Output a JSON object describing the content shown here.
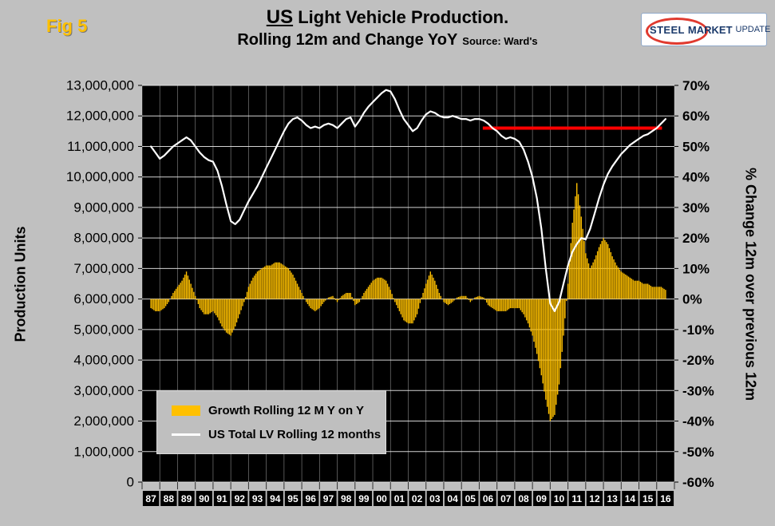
{
  "header": {
    "fig_label": "Fig 5",
    "title_emph": "US",
    "title_rest": " Light Vehicle Production.",
    "subtitle": "Rolling 12m and Change YoY",
    "source": "Source: Ward's",
    "logo": {
      "steel": "STEEL",
      "market": "MARKET",
      "update": "UPDATE"
    }
  },
  "legend": [
    {
      "label": "Growth Rolling 12 M Y on Y",
      "swatch_color": "#FFC000",
      "type": "bar"
    },
    {
      "label": "US Total LV Rolling 12 months",
      "swatch_color": "#FFFFFF",
      "type": "line"
    }
  ],
  "colors": {
    "background": "#C0C0C0",
    "plot_bg": "#000000",
    "bar": "#FFC000",
    "line": "#FFFFFF",
    "reference": "#FF0000",
    "grid_h": "#EAEAEA",
    "grid_v": "#DCDCDC",
    "fig_label": "#FFC000",
    "x_label_box": "#000000",
    "x_label_text": "#FFFFFF"
  },
  "chart_data": {
    "type": "combo",
    "title": "US Light Vehicle Production. Rolling 12m and Change YoY",
    "source": "Ward's",
    "x_start": 1987,
    "x_step_years": 0.25,
    "x_labels": [
      "87",
      "88",
      "89",
      "90",
      "91",
      "92",
      "93",
      "94",
      "95",
      "96",
      "97",
      "98",
      "99",
      "00",
      "01",
      "02",
      "03",
      "04",
      "05",
      "06",
      "07",
      "08",
      "09",
      "10",
      "11",
      "12",
      "13",
      "14",
      "15",
      "16"
    ],
    "left_axis": {
      "label": "Production Units",
      "min": 0,
      "max": 13000000,
      "tick_step": 1000000
    },
    "right_axis": {
      "label": "% Change 12m over previous 12m",
      "min": -60,
      "max": 70,
      "tick_step": 10
    },
    "series": [
      {
        "name": "US Total LV Rolling 12 months",
        "type": "line",
        "axis": "left",
        "color": "#FFFFFF",
        "values_millions": [
          11,
          10.8,
          10.6,
          10.7,
          10.85,
          11,
          11.1,
          11.2,
          11.3,
          11.2,
          11,
          10.8,
          10.65,
          10.55,
          10.5,
          10.2,
          9.7,
          9.1,
          8.55,
          8.45,
          8.6,
          8.9,
          9.2,
          9.45,
          9.7,
          10,
          10.3,
          10.6,
          10.9,
          11.2,
          11.5,
          11.75,
          11.9,
          11.95,
          11.85,
          11.7,
          11.6,
          11.65,
          11.6,
          11.7,
          11.75,
          11.7,
          11.6,
          11.75,
          11.9,
          11.95,
          11.65,
          11.85,
          12.1,
          12.3,
          12.45,
          12.6,
          12.75,
          12.85,
          12.8,
          12.55,
          12.2,
          11.9,
          11.7,
          11.5,
          11.6,
          11.85,
          12.05,
          12.15,
          12.1,
          12,
          11.95,
          11.95,
          12,
          11.95,
          11.9,
          11.9,
          11.85,
          11.9,
          11.9,
          11.85,
          11.75,
          11.6,
          11.5,
          11.35,
          11.25,
          11.3,
          11.25,
          11.15,
          10.9,
          10.5,
          10,
          9.3,
          8.3,
          7,
          5.85,
          5.6,
          5.9,
          6.5,
          7.1,
          7.55,
          7.8,
          8,
          7.95,
          8.3,
          8.8,
          9.3,
          9.75,
          10.1,
          10.35,
          10.55,
          10.75,
          10.9,
          11.05,
          11.15,
          11.25,
          11.35,
          11.4,
          11.5,
          11.6,
          11.75,
          11.9
        ]
      },
      {
        "name": "Growth Rolling 12 M Y on Y",
        "type": "bar",
        "axis": "right",
        "color": "#FFC000",
        "values_pct": [
          -3,
          -4,
          -4,
          -3,
          -1,
          2,
          4,
          6,
          9,
          5,
          1,
          -3,
          -5,
          -5,
          -4,
          -6,
          -9,
          -11,
          -12,
          -9,
          -5,
          -1,
          4,
          7,
          9,
          10,
          11,
          11,
          12,
          12,
          11,
          10,
          8,
          5,
          2,
          -1,
          -3,
          -4,
          -3,
          -1,
          0.5,
          1,
          -1,
          1,
          2,
          2,
          -2,
          -1,
          2,
          4,
          6,
          7,
          7,
          6,
          3,
          -1,
          -4,
          -7,
          -8,
          -8,
          -5,
          0.5,
          5,
          9,
          6,
          2,
          -1,
          -2,
          -1,
          0.5,
          1,
          1,
          -1,
          0.5,
          1,
          0.5,
          -2,
          -3,
          -4,
          -4,
          -4,
          -3,
          -3,
          -3,
          -5,
          -8,
          -12,
          -18,
          -25,
          -33,
          -40,
          -38,
          -28,
          -12,
          5,
          25,
          38,
          27,
          15,
          10,
          13,
          17,
          20,
          18,
          14,
          11,
          9,
          8,
          7,
          6,
          6,
          5,
          5,
          4,
          4,
          4,
          3
        ]
      }
    ],
    "annotations": [
      {
        "type": "hline",
        "color": "#FF0000",
        "value": 11600000,
        "x_from": 2005.7,
        "x_to": 2015.8,
        "stroke_width": 4
      }
    ]
  }
}
